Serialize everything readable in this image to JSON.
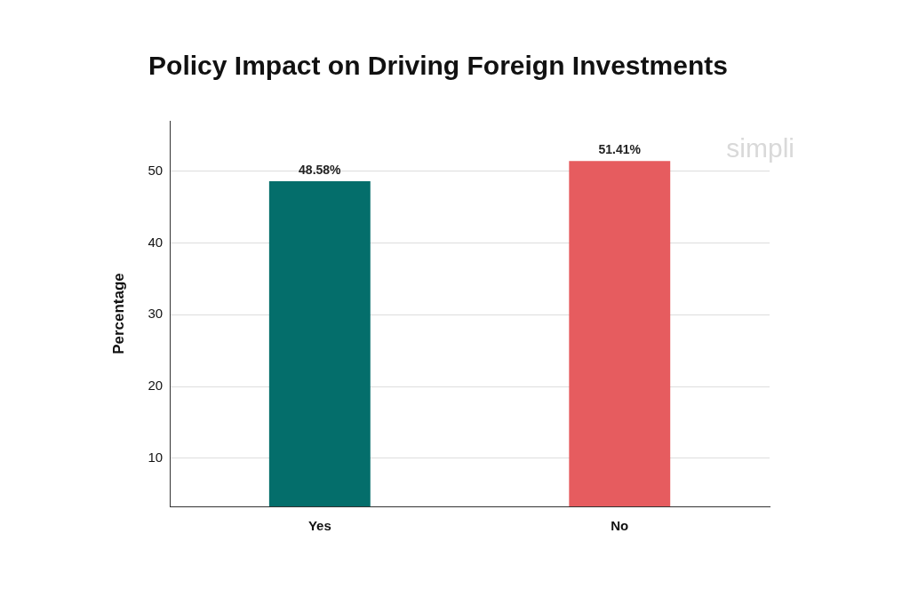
{
  "chart_data": {
    "type": "bar",
    "title": "Policy Impact on Driving Foreign Investments",
    "y_label": "Percentage",
    "categories": [
      "Yes",
      "No"
    ],
    "values": [
      48.58,
      51.41
    ],
    "value_labels": [
      "48.58%",
      "51.41%"
    ],
    "colors": [
      "#046e6b",
      "#e65c5f"
    ],
    "ylim": [
      3.3,
      57
    ],
    "yticks": [
      10,
      20,
      30,
      40,
      50
    ],
    "grid": true,
    "data_labels": true,
    "annotations": [
      "simpli"
    ]
  }
}
